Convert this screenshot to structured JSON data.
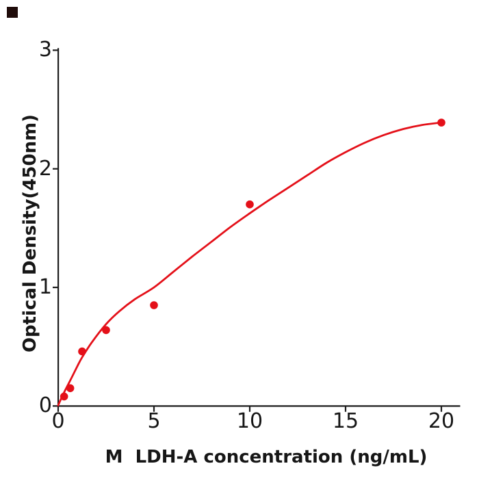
{
  "figure": {
    "background": "#ffffff",
    "corner_mark_color": "#1f0c0a",
    "axis_color": "#1c1c1c",
    "text_color": "#161616",
    "accent_red": "#e41019"
  },
  "chart_data": {
    "type": "scatter",
    "title": "",
    "xlabel": "M  LDH-A concentration (ng/mL)",
    "ylabel": "Optical Density(450nm)",
    "xlim": [
      0,
      21
    ],
    "ylim": [
      0,
      3
    ],
    "x_ticks": [
      0,
      5,
      10,
      15,
      20
    ],
    "y_ticks": [
      0,
      1,
      2,
      3
    ],
    "grid": false,
    "legend": "none",
    "series": [
      {
        "name": "standard-points",
        "type": "scatter",
        "color": "#e41019",
        "points": [
          [
            0.31,
            0.08
          ],
          [
            0.63,
            0.15
          ],
          [
            1.25,
            0.46
          ],
          [
            2.5,
            0.64
          ],
          [
            5,
            0.85
          ],
          [
            10,
            1.7
          ],
          [
            20,
            2.39
          ]
        ]
      },
      {
        "name": "fitted-curve",
        "type": "line",
        "color": "#e41019",
        "points": [
          [
            0,
            0.005
          ],
          [
            0.15,
            0.06
          ],
          [
            0.31,
            0.115
          ],
          [
            0.63,
            0.215
          ],
          [
            1.0,
            0.335
          ],
          [
            1.25,
            0.41
          ],
          [
            1.75,
            0.535
          ],
          [
            2.5,
            0.69
          ],
          [
            3.2,
            0.8
          ],
          [
            4,
            0.9
          ],
          [
            5,
            1.0
          ],
          [
            6,
            1.13
          ],
          [
            7,
            1.26
          ],
          [
            8,
            1.385
          ],
          [
            9,
            1.51
          ],
          [
            10,
            1.625
          ],
          [
            11,
            1.735
          ],
          [
            12,
            1.84
          ],
          [
            13,
            1.945
          ],
          [
            14,
            2.05
          ],
          [
            15,
            2.14
          ],
          [
            16,
            2.22
          ],
          [
            17,
            2.285
          ],
          [
            18,
            2.335
          ],
          [
            19,
            2.37
          ],
          [
            20,
            2.39
          ]
        ]
      }
    ]
  }
}
